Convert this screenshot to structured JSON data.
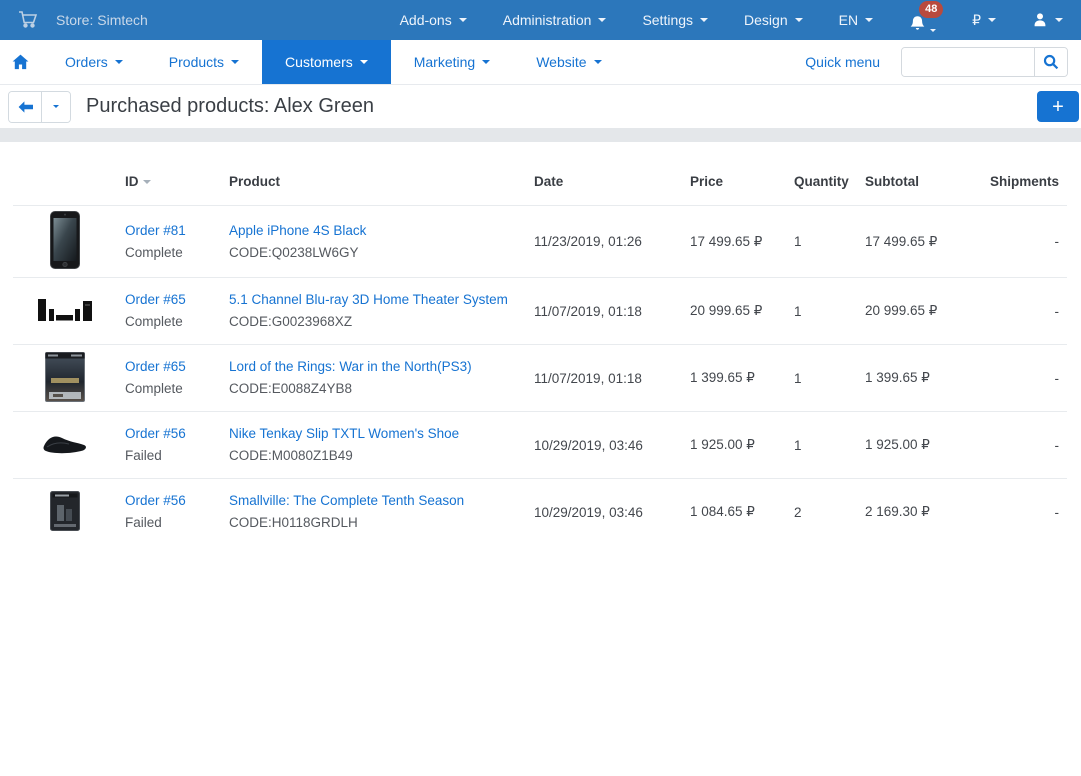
{
  "topbar": {
    "store_label": "Store: Simtech",
    "menus": [
      "Add-ons",
      "Administration",
      "Settings",
      "Design",
      "EN"
    ],
    "notification_count": "48",
    "currency_code": "₽"
  },
  "navbar": {
    "items": [
      "Orders",
      "Products",
      "Customers",
      "Marketing",
      "Website"
    ],
    "active_item": "Customers",
    "quick_menu_label": "Quick menu",
    "search_value": ""
  },
  "page": {
    "title": "Purchased products: Alex Green",
    "add_button_label": "+"
  },
  "table": {
    "columns": [
      "ID",
      "Product",
      "Date",
      "Price",
      "Quantity",
      "Subtotal",
      "Shipments"
    ],
    "sorted_column": "ID",
    "rows": [
      {
        "image": "iphone",
        "order": "Order #81",
        "status": "Complete",
        "product": "Apple iPhone 4S Black",
        "code": "CODE:Q0238LW6GY",
        "date": "11/23/2019, 01:26",
        "price": "17 499.65 ₽",
        "quantity": "1",
        "subtotal": "17 499.65 ₽",
        "shipments": "-"
      },
      {
        "image": "home-theater",
        "order": "Order #65",
        "status": "Complete",
        "product": "5.1 Channel Blu-ray 3D Home Theater System",
        "code": "CODE:G0023968XZ",
        "date": "11/07/2019, 01:18",
        "price": "20 999.65 ₽",
        "quantity": "1",
        "subtotal": "20 999.65 ₽",
        "shipments": "-"
      },
      {
        "image": "lotr-game-box",
        "order": "Order #65",
        "status": "Complete",
        "product": "Lord of the Rings: War in the North(PS3)",
        "code": "CODE:E0088Z4YB8",
        "date": "11/07/2019, 01:18",
        "price": "1 399.65 ₽",
        "quantity": "1",
        "subtotal": "1 399.65 ₽",
        "shipments": "-"
      },
      {
        "image": "nike-shoe",
        "order": "Order #56",
        "status": "Failed",
        "product": "Nike Tenkay Slip TXTL Women's Shoe",
        "code": "CODE:M0080Z1B49",
        "date": "10/29/2019, 03:46",
        "price": "1 925.00 ₽",
        "quantity": "1",
        "subtotal": "1 925.00 ₽",
        "shipments": "-"
      },
      {
        "image": "smallville-dvd",
        "order": "Order #56",
        "status": "Failed",
        "product": "Smallville: The Complete Tenth Season",
        "code": "CODE:H0118GRDLH",
        "date": "10/29/2019, 03:46",
        "price": "1 084.65 ₽",
        "quantity": "2",
        "subtotal": "2 169.30 ₽",
        "shipments": "-"
      }
    ]
  },
  "colors": {
    "topbar_bg": "#2c77bb",
    "accent_blue": "#1673d2",
    "badge_red": "#b94a3e",
    "strip_gray": "#e4e7ea"
  }
}
